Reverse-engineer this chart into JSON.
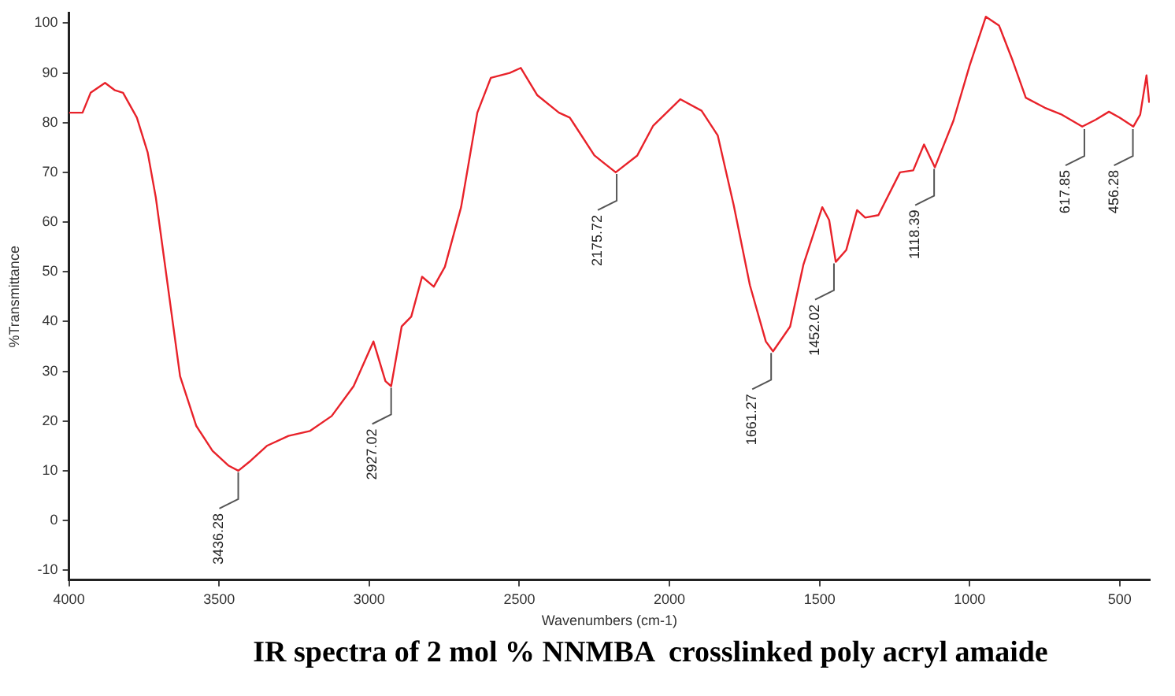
{
  "chart_data": {
    "type": "line",
    "title": "IR spectra of 2 mol % NNMBA  crosslinked poly acryl amaide",
    "xlabel": "Wavenumbers (cm-1)",
    "ylabel": "%Transmittance",
    "x": [
      4000,
      3955,
      3928,
      3880,
      3847,
      3820,
      3774,
      3738,
      3711,
      3684,
      3657,
      3630,
      3576,
      3522,
      3468,
      3436,
      3395,
      3341,
      3269,
      3197,
      3125,
      3052,
      2986,
      2946,
      2927,
      2892,
      2860,
      2824,
      2785,
      2748,
      2694,
      2640,
      2595,
      2532,
      2495,
      2440,
      2368,
      2332,
      2321,
      2250,
      2179,
      2107,
      2054,
      1964,
      1893,
      1839,
      1786,
      1732,
      1679,
      1655,
      1598,
      1554,
      1491,
      1468,
      1446,
      1411,
      1375,
      1348,
      1304,
      1232,
      1188,
      1152,
      1116,
      1054,
      1000,
      946,
      902,
      857,
      813,
      750,
      696,
      625,
      580,
      536,
      500,
      455,
      432,
      411,
      402
    ],
    "series": [
      {
        "color": "#e8222a",
        "values": [
          82,
          82,
          86,
          88,
          86.5,
          86,
          81,
          74,
          65,
          53,
          41,
          29,
          19,
          14,
          11,
          10,
          12,
          15,
          17,
          18,
          21,
          27,
          36,
          28,
          27,
          39,
          41,
          49,
          47,
          51,
          63,
          82,
          89,
          90,
          91,
          85.5,
          82,
          81,
          80,
          73.4,
          70,
          73.4,
          79.4,
          84.7,
          82.4,
          77.4,
          63.4,
          47.3,
          36,
          34,
          39,
          51.4,
          63,
          60.4,
          52,
          54.4,
          62.4,
          60.9,
          61.4,
          70,
          70.4,
          75.6,
          71,
          80.4,
          91.5,
          101.3,
          99.5,
          92.5,
          85,
          83,
          81.7,
          79.2,
          80.6,
          82.2,
          81,
          79.2,
          81.6,
          89.5,
          84
        ]
      }
    ],
    "xlim": [
      4000,
      400
    ],
    "xticks": [
      4000,
      3500,
      3000,
      2500,
      2000,
      1500,
      1000,
      500
    ],
    "ylim": [
      -12,
      102
    ],
    "yticks": [
      -10,
      0,
      10,
      20,
      30,
      40,
      50,
      60,
      70,
      80,
      90,
      100
    ],
    "grid": false,
    "legend": false,
    "marker": "none",
    "line_style": "solid",
    "annotations": [
      {
        "text": "3436.28",
        "x": 3436.28,
        "y": 10
      },
      {
        "text": "2927.02",
        "x": 2927.02,
        "y": 27
      },
      {
        "text": "2175.72",
        "x": 2175.72,
        "y": 70
      },
      {
        "text": "1661.27",
        "x": 1661.27,
        "y": 34
      },
      {
        "text": "1452.02",
        "x": 1452.02,
        "y": 52
      },
      {
        "text": "1118.39",
        "x": 1118.39,
        "y": 71
      },
      {
        "text": "617.85",
        "x": 617.85,
        "y": 79
      },
      {
        "text": "456.28",
        "x": 456.28,
        "y": 79
      }
    ]
  }
}
